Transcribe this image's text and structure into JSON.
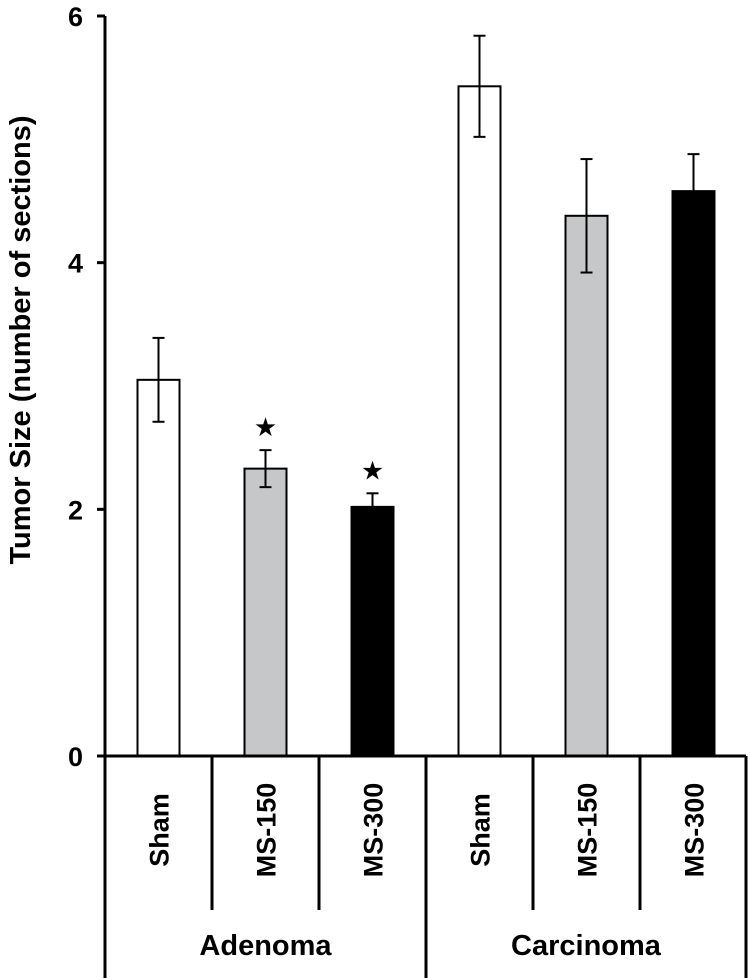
{
  "chart_data": {
    "type": "bar",
    "ylabel": "Tumor Size (number of sections)",
    "ylim": [
      0,
      6
    ],
    "yticks": [
      "0",
      "2",
      "4",
      "6"
    ],
    "grid": false,
    "groups": [
      {
        "name": "Adenoma",
        "categories": [
          "Sham",
          "MS-150",
          "MS-300"
        ],
        "values": [
          3.05,
          2.33,
          2.02
        ],
        "errors": [
          0.34,
          0.15,
          0.11
        ],
        "colors": [
          "#ffffff",
          "#c6c7c9",
          "#000000"
        ],
        "annotations": [
          "",
          "★",
          "★"
        ]
      },
      {
        "name": "Carcinoma",
        "categories": [
          "Sham",
          "MS-150",
          "MS-300"
        ],
        "values": [
          5.43,
          4.38,
          4.58
        ],
        "errors": [
          0.41,
          0.46,
          0.3
        ],
        "colors": [
          "#ffffff",
          "#c6c7c9",
          "#000000"
        ],
        "annotations": [
          "",
          "",
          ""
        ]
      }
    ]
  }
}
